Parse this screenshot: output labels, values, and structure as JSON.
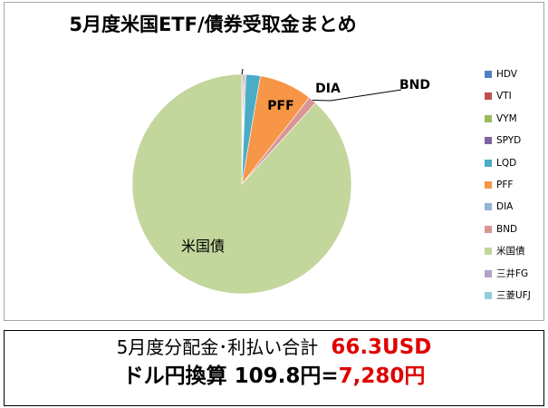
{
  "chart_data": {
    "type": "pie",
    "title": "5月度米国ETF/債券受取金まとめ",
    "slices": [
      {
        "name": "HDV",
        "value": 0.1,
        "color": "#4f81bd",
        "label": ""
      },
      {
        "name": "VTI",
        "value": 0.1,
        "color": "#c0504d",
        "label": ""
      },
      {
        "name": "VYM",
        "value": 0.1,
        "color": "#9bbb59",
        "label": ""
      },
      {
        "name": "SPYD",
        "value": 0.1,
        "color": "#8064a2",
        "label": ""
      },
      {
        "name": "LQD",
        "value": 1.4,
        "color": "#4bacc6",
        "label": ""
      },
      {
        "name": "PFF",
        "value": 5.2,
        "color": "#f79646",
        "label": "PFF"
      },
      {
        "name": "DIA",
        "value": 0.0,
        "color": "#95b3d7",
        "label": "DIA"
      },
      {
        "name": "BND",
        "value": 0.8,
        "color": "#d99694",
        "label": "BND"
      },
      {
        "name": "米国債",
        "value": 58.5,
        "color": "#c3d69b",
        "label": "米国債"
      },
      {
        "name": "三井FG",
        "value": 0.0,
        "color": "#b3a2c7",
        "label": ""
      },
      {
        "name": "三菱UFJ",
        "value": 0.0,
        "color": "#93cddd",
        "label": ""
      }
    ],
    "legend_position": "right"
  },
  "summary": {
    "line1_text": "5月度分配金･利払い合計",
    "line1_amount": "66.3USD",
    "line2_text": "ドル円換算  109.8円=",
    "line2_yen": "7,280円"
  }
}
